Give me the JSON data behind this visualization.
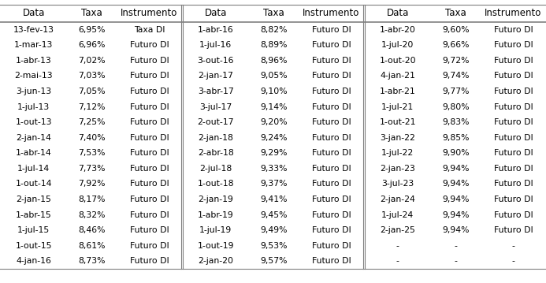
{
  "col1": [
    [
      "13-fev-13",
      "6,95%",
      "Taxa DI"
    ],
    [
      "1-mar-13",
      "6,96%",
      "Futuro DI"
    ],
    [
      "1-abr-13",
      "7,02%",
      "Futuro DI"
    ],
    [
      "2-mai-13",
      "7,03%",
      "Futuro DI"
    ],
    [
      "3-jun-13",
      "7,05%",
      "Futuro DI"
    ],
    [
      "1-jul-13",
      "7,12%",
      "Futuro DI"
    ],
    [
      "1-out-13",
      "7,25%",
      "Futuro DI"
    ],
    [
      "2-jan-14",
      "7,40%",
      "Futuro DI"
    ],
    [
      "1-abr-14",
      "7,53%",
      "Futuro DI"
    ],
    [
      "1-jul-14",
      "7,73%",
      "Futuro DI"
    ],
    [
      "1-out-14",
      "7,92%",
      "Futuro DI"
    ],
    [
      "2-jan-15",
      "8,17%",
      "Futuro DI"
    ],
    [
      "1-abr-15",
      "8,32%",
      "Futuro DI"
    ],
    [
      "1-jul-15",
      "8,46%",
      "Futuro DI"
    ],
    [
      "1-out-15",
      "8,61%",
      "Futuro DI"
    ],
    [
      "4-jan-16",
      "8,73%",
      "Futuro DI"
    ]
  ],
  "col2": [
    [
      "1-abr-16",
      "8,82%",
      "Futuro DI"
    ],
    [
      "1-jul-16",
      "8,89%",
      "Futuro DI"
    ],
    [
      "3-out-16",
      "8,96%",
      "Futuro DI"
    ],
    [
      "2-jan-17",
      "9,05%",
      "Futuro DI"
    ],
    [
      "3-abr-17",
      "9,10%",
      "Futuro DI"
    ],
    [
      "3-jul-17",
      "9,14%",
      "Futuro DI"
    ],
    [
      "2-out-17",
      "9,20%",
      "Futuro DI"
    ],
    [
      "2-jan-18",
      "9,24%",
      "Futuro DI"
    ],
    [
      "2-abr-18",
      "9,29%",
      "Futuro DI"
    ],
    [
      "2-jul-18",
      "9,33%",
      "Futuro DI"
    ],
    [
      "1-out-18",
      "9,37%",
      "Futuro DI"
    ],
    [
      "2-jan-19",
      "9,41%",
      "Futuro DI"
    ],
    [
      "1-abr-19",
      "9,45%",
      "Futuro DI"
    ],
    [
      "1-jul-19",
      "9,49%",
      "Futuro DI"
    ],
    [
      "1-out-19",
      "9,53%",
      "Futuro DI"
    ],
    [
      "2-jan-20",
      "9,57%",
      "Futuro DI"
    ]
  ],
  "col3": [
    [
      "1-abr-20",
      "9,60%",
      "Futuro DI"
    ],
    [
      "1-jul-20",
      "9,66%",
      "Futuro DI"
    ],
    [
      "1-out-20",
      "9,72%",
      "Futuro DI"
    ],
    [
      "4-jan-21",
      "9,74%",
      "Futuro DI"
    ],
    [
      "1-abr-21",
      "9,77%",
      "Futuro DI"
    ],
    [
      "1-jul-21",
      "9,80%",
      "Futuro DI"
    ],
    [
      "1-out-21",
      "9,83%",
      "Futuro DI"
    ],
    [
      "3-jan-22",
      "9,85%",
      "Futuro DI"
    ],
    [
      "1-jul-22",
      "9,90%",
      "Futuro DI"
    ],
    [
      "2-jan-23",
      "9,94%",
      "Futuro DI"
    ],
    [
      "3-jul-23",
      "9,94%",
      "Futuro DI"
    ],
    [
      "2-jan-24",
      "9,94%",
      "Futuro DI"
    ],
    [
      "1-jul-24",
      "9,94%",
      "Futuro DI"
    ],
    [
      "2-jan-25",
      "9,94%",
      "Futuro DI"
    ],
    [
      "-",
      "-",
      "-"
    ],
    [
      "-",
      "-",
      "-"
    ]
  ],
  "headers": [
    "Data",
    "Taxa",
    "Instrumento"
  ],
  "text_color": "#000000",
  "border_color": "#808080",
  "font_size": 7.8,
  "header_font_size": 8.5,
  "n_rows": 16,
  "fig_width": 6.93,
  "fig_height": 3.59,
  "dpi": 100
}
